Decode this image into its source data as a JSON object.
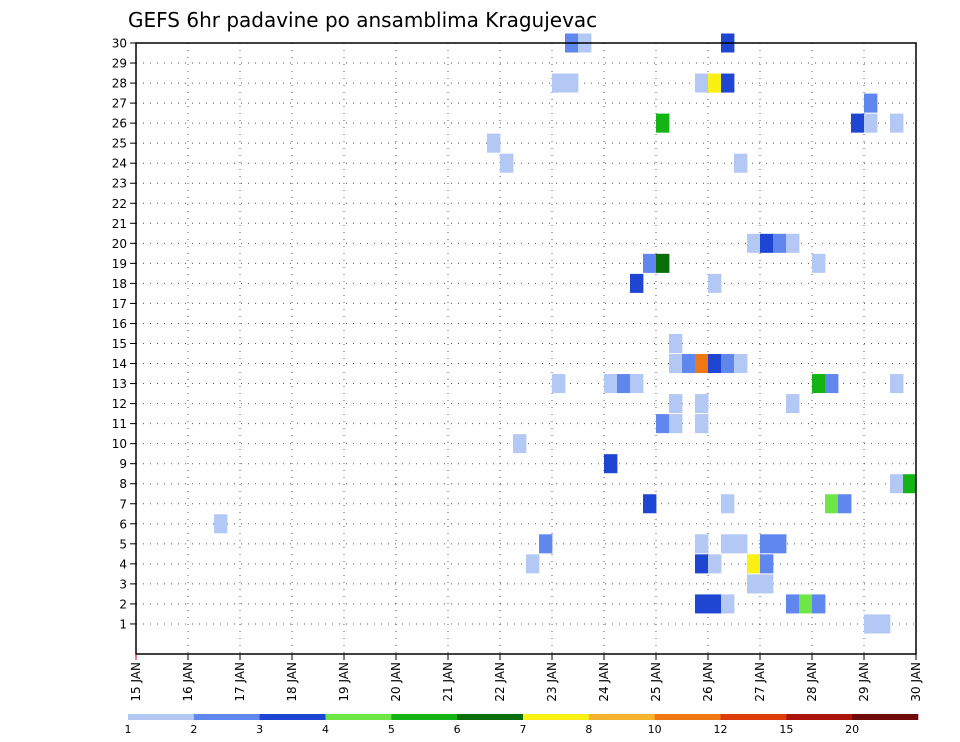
{
  "chart_data": {
    "type": "heatmap",
    "title": "GEFS 6hr padavine po ansamblima Kragujevac",
    "xlabel": "",
    "ylabel": "",
    "x_tick_labels": [
      "15 JAN",
      "16 JAN",
      "17 JAN",
      "18 JAN",
      "19 JAN",
      "20 JAN",
      "21 JAN",
      "22 JAN",
      "23 JAN",
      "24 JAN",
      "25 JAN",
      "26 JAN",
      "27 JAN",
      "28 JAN",
      "29 JAN",
      "30 JAN"
    ],
    "xlim_days": [
      0,
      15
    ],
    "y_tick_labels": [
      "1",
      "2",
      "3",
      "4",
      "5",
      "6",
      "7",
      "8",
      "9",
      "10",
      "11",
      "12",
      "13",
      "14",
      "15",
      "16",
      "17",
      "18",
      "19",
      "20",
      "21",
      "22",
      "23",
      "24",
      "25",
      "26",
      "27",
      "28",
      "29",
      "30"
    ],
    "ylim_members": [
      0,
      30
    ],
    "grid": true,
    "colorbar": {
      "levels": [
        "1",
        "2",
        "3",
        "4",
        "5",
        "6",
        "7",
        "8",
        "10",
        "12",
        "15",
        "20"
      ],
      "colors": [
        "#b4c8f5",
        "#5f87ee",
        "#1e46d2",
        "#6ee646",
        "#14b414",
        "#0a6e0a",
        "#faf014",
        "#f5b42d",
        "#f07814",
        "#dc3c0a",
        "#aa140a",
        "#6e0a0a"
      ]
    },
    "cells": [
      {
        "member": 30,
        "step": 33,
        "bin": 2
      },
      {
        "member": 30,
        "step": 34,
        "bin": 1
      },
      {
        "member": 30,
        "step": 45,
        "bin": 3
      },
      {
        "member": 28,
        "step": 32,
        "bin": 1
      },
      {
        "member": 28,
        "step": 33,
        "bin": 1
      },
      {
        "member": 28,
        "step": 43,
        "bin": 1
      },
      {
        "member": 28,
        "step": 44,
        "bin": 7
      },
      {
        "member": 28,
        "step": 45,
        "bin": 3
      },
      {
        "member": 27,
        "step": 56,
        "bin": 2
      },
      {
        "member": 26,
        "step": 40,
        "bin": 5
      },
      {
        "member": 26,
        "step": 55,
        "bin": 3
      },
      {
        "member": 26,
        "step": 56,
        "bin": 1
      },
      {
        "member": 26,
        "step": 58,
        "bin": 1
      },
      {
        "member": 25,
        "step": 27,
        "bin": 1
      },
      {
        "member": 24,
        "step": 28,
        "bin": 1
      },
      {
        "member": 24,
        "step": 46,
        "bin": 1
      },
      {
        "member": 20,
        "step": 47,
        "bin": 1
      },
      {
        "member": 20,
        "step": 48,
        "bin": 3
      },
      {
        "member": 20,
        "step": 49,
        "bin": 2
      },
      {
        "member": 20,
        "step": 50,
        "bin": 1
      },
      {
        "member": 19,
        "step": 39,
        "bin": 2
      },
      {
        "member": 19,
        "step": 40,
        "bin": 6
      },
      {
        "member": 19,
        "step": 52,
        "bin": 1
      },
      {
        "member": 18,
        "step": 38,
        "bin": 3
      },
      {
        "member": 18,
        "step": 44,
        "bin": 1
      },
      {
        "member": 15,
        "step": 41,
        "bin": 1
      },
      {
        "member": 14,
        "step": 41,
        "bin": 1
      },
      {
        "member": 14,
        "step": 42,
        "bin": 2
      },
      {
        "member": 14,
        "step": 43,
        "bin": 9
      },
      {
        "member": 14,
        "step": 44,
        "bin": 3
      },
      {
        "member": 14,
        "step": 45,
        "bin": 2
      },
      {
        "member": 14,
        "step": 46,
        "bin": 1
      },
      {
        "member": 13,
        "step": 32,
        "bin": 1
      },
      {
        "member": 13,
        "step": 36,
        "bin": 1
      },
      {
        "member": 13,
        "step": 37,
        "bin": 2
      },
      {
        "member": 13,
        "step": 38,
        "bin": 1
      },
      {
        "member": 13,
        "step": 52,
        "bin": 5
      },
      {
        "member": 13,
        "step": 53,
        "bin": 2
      },
      {
        "member": 13,
        "step": 58,
        "bin": 1
      },
      {
        "member": 12,
        "step": 41,
        "bin": 1
      },
      {
        "member": 12,
        "step": 43,
        "bin": 1
      },
      {
        "member": 12,
        "step": 50,
        "bin": 1
      },
      {
        "member": 11,
        "step": 40,
        "bin": 2
      },
      {
        "member": 11,
        "step": 41,
        "bin": 1
      },
      {
        "member": 11,
        "step": 43,
        "bin": 1
      },
      {
        "member": 10,
        "step": 29,
        "bin": 1
      },
      {
        "member": 9,
        "step": 36,
        "bin": 3
      },
      {
        "member": 8,
        "step": 58,
        "bin": 1
      },
      {
        "member": 8,
        "step": 59,
        "bin": 5
      },
      {
        "member": 7,
        "step": 39,
        "bin": 3
      },
      {
        "member": 7,
        "step": 45,
        "bin": 1
      },
      {
        "member": 7,
        "step": 53,
        "bin": 4
      },
      {
        "member": 7,
        "step": 54,
        "bin": 2
      },
      {
        "member": 6,
        "step": 6,
        "bin": 1
      },
      {
        "member": 5,
        "step": 31,
        "bin": 2
      },
      {
        "member": 5,
        "step": 43,
        "bin": 1
      },
      {
        "member": 5,
        "step": 45,
        "bin": 1
      },
      {
        "member": 5,
        "step": 46,
        "bin": 1
      },
      {
        "member": 5,
        "step": 48,
        "bin": 2
      },
      {
        "member": 5,
        "step": 49,
        "bin": 2
      },
      {
        "member": 4,
        "step": 30,
        "bin": 1
      },
      {
        "member": 4,
        "step": 43,
        "bin": 3
      },
      {
        "member": 4,
        "step": 44,
        "bin": 1
      },
      {
        "member": 4,
        "step": 47,
        "bin": 7
      },
      {
        "member": 4,
        "step": 48,
        "bin": 2
      },
      {
        "member": 3,
        "step": 47,
        "bin": 1
      },
      {
        "member": 3,
        "step": 48,
        "bin": 1
      },
      {
        "member": 2,
        "step": 43,
        "bin": 3
      },
      {
        "member": 2,
        "step": 44,
        "bin": 3
      },
      {
        "member": 2,
        "step": 45,
        "bin": 1
      },
      {
        "member": 2,
        "step": 50,
        "bin": 2
      },
      {
        "member": 2,
        "step": 51,
        "bin": 4
      },
      {
        "member": 2,
        "step": 52,
        "bin": 2
      },
      {
        "member": 1,
        "step": 56,
        "bin": 1
      },
      {
        "member": 1,
        "step": 57,
        "bin": 1
      }
    ]
  }
}
